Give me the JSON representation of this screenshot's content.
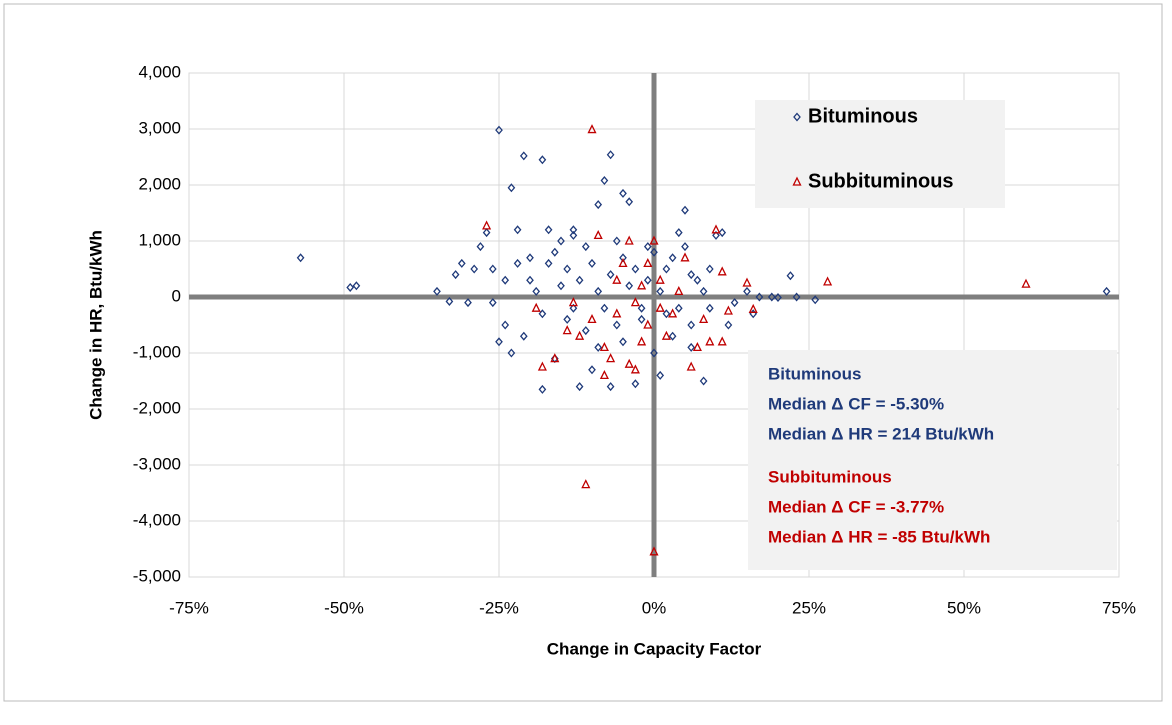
{
  "chart_data": {
    "type": "scatter",
    "x_label": "Change in Capacity Factor",
    "y_label": "Change in HR, Btu/kWh",
    "xlim": [
      -75,
      75
    ],
    "xticks": [
      {
        "value": -75,
        "label": "-75%"
      },
      {
        "value": -50,
        "label": "-50%"
      },
      {
        "value": -25,
        "label": "-25%"
      },
      {
        "value": 0,
        "label": "0%"
      },
      {
        "value": 25,
        "label": "25%"
      },
      {
        "value": 50,
        "label": "50%"
      },
      {
        "value": 75,
        "label": "75%"
      }
    ],
    "ylim": [
      -5000,
      4000
    ],
    "yticks": [
      {
        "value": -5000,
        "label": "-5,000"
      },
      {
        "value": -4000,
        "label": "-4,000"
      },
      {
        "value": -3000,
        "label": "-3,000"
      },
      {
        "value": -2000,
        "label": "-2,000"
      },
      {
        "value": -1000,
        "label": "-1,000"
      },
      0,
      {
        "value": 1000,
        "label": "1,000"
      },
      {
        "value": 2000,
        "label": "2,000"
      },
      {
        "value": 3000,
        "label": "3,000"
      },
      {
        "value": 4000,
        "label": "4,000"
      }
    ],
    "grid": true,
    "legend": "upper right",
    "series": [
      {
        "name": "Bituminous",
        "color": "#1f3a7a",
        "marker": "diamond",
        "x": [
          -57,
          -49,
          -48,
          -35,
          -33,
          -32,
          -31,
          -30,
          -29,
          -28,
          -27,
          -26,
          -25,
          -25,
          -24,
          -23,
          -22,
          -21,
          -20,
          -18,
          -18,
          -17,
          -16,
          -14,
          -13,
          -12,
          -11,
          -10,
          -9,
          -8,
          -7,
          -7,
          -6,
          -5,
          -4,
          -3,
          -2,
          -1,
          1,
          2,
          3,
          4,
          5,
          6,
          7,
          8,
          9,
          10,
          11,
          12,
          13,
          15,
          16,
          17,
          19,
          20,
          22,
          23,
          26,
          73,
          -20,
          -19,
          -18,
          -17,
          -16,
          -15,
          -14,
          -13,
          -12,
          -11,
          -10,
          -9,
          -8,
          -7,
          -6,
          -5,
          -4,
          -3,
          -2,
          -1,
          0,
          1,
          2,
          3,
          4,
          5,
          6,
          8,
          -21,
          -22,
          -15,
          -13,
          -9,
          -5,
          0,
          6,
          9,
          -23,
          -24,
          -26
        ],
        "values": [
          700,
          170,
          200,
          100,
          -80,
          400,
          600,
          -100,
          500,
          900,
          1150,
          500,
          2980,
          -800,
          -500,
          1950,
          1200,
          2520,
          700,
          2450,
          -1650,
          1200,
          -1100,
          -400,
          1100,
          -1600,
          900,
          -1300,
          1650,
          2080,
          2540,
          -1600,
          1000,
          1850,
          1700,
          -1550,
          -200,
          900,
          -1400,
          500,
          -700,
          1150,
          1550,
          -900,
          300,
          -1500,
          500,
          1100,
          1150,
          -500,
          -100,
          100,
          -300,
          0,
          0,
          -10,
          380,
          0,
          -50,
          100,
          300,
          100,
          -300,
          600,
          800,
          200,
          500,
          -200,
          300,
          -600,
          600,
          100,
          -200,
          400,
          -500,
          700,
          200,
          500,
          -400,
          300,
          800,
          100,
          -300,
          700,
          -200,
          900,
          400,
          100,
          -700,
          600,
          1000,
          1200,
          -900,
          -800,
          -1000,
          -500,
          -200,
          -1000,
          300,
          -100
        ]
      },
      {
        "name": "Subbituminous",
        "color": "#c00000",
        "marker": "triangle",
        "x": [
          -27,
          -19,
          -18,
          -16,
          -14,
          -12,
          -11,
          -10,
          -10,
          -9,
          -8,
          -8,
          -7,
          -6,
          -5,
          -4,
          -4,
          -3,
          -3,
          -2,
          -1,
          0,
          0,
          1,
          2,
          3,
          5,
          6,
          7,
          8,
          10,
          11,
          12,
          15,
          16,
          28,
          60,
          -6,
          -2,
          4,
          1,
          -1,
          9,
          11,
          -13
        ],
        "values": [
          1270,
          -200,
          -1250,
          -1100,
          -600,
          -700,
          -3350,
          2990,
          -400,
          1100,
          -900,
          -1400,
          -1100,
          -300,
          600,
          -1200,
          1000,
          -100,
          -1300,
          200,
          -500,
          -4550,
          1000,
          -200,
          -700,
          -300,
          700,
          -1250,
          -900,
          -400,
          1200,
          450,
          -250,
          250,
          -220,
          270,
          230,
          300,
          -800,
          100,
          300,
          600,
          -800,
          -800,
          -100
        ]
      }
    ],
    "annotations": [
      {
        "text": "Bituminous",
        "color": "#1f3a7a"
      },
      {
        "text": "Median Δ CF = -5.30%",
        "color": "#1f3a7a"
      },
      {
        "text": "Median Δ HR = 214 Btu/kWh",
        "color": "#1f3a7a"
      },
      {
        "text": "Subbituminous",
        "color": "#c00000"
      },
      {
        "text": "Median Δ CF = -3.77%",
        "color": "#c00000"
      },
      {
        "text": "Median Δ HR = -85 Btu/kWh",
        "color": "#c00000"
      }
    ]
  }
}
